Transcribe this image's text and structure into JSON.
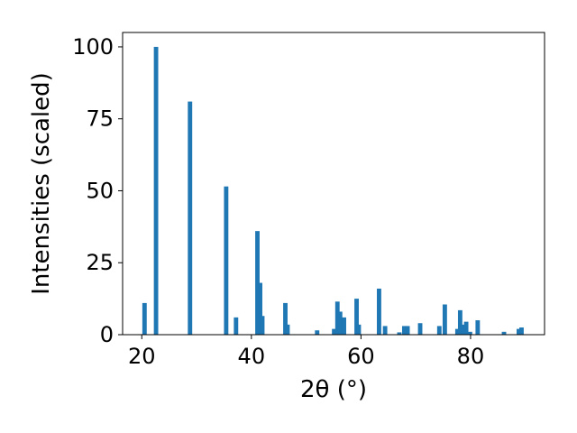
{
  "chart_data": {
    "type": "bar",
    "title": "",
    "xlabel": "2θ (°)",
    "ylabel": "Intensities (scaled)",
    "xlim": [
      16.5,
      93.5
    ],
    "ylim": [
      0,
      105
    ],
    "xticks": [
      20,
      40,
      60,
      80
    ],
    "yticks": [
      0,
      25,
      50,
      75,
      100
    ],
    "bar_width": 0.8,
    "color": "#1f77b4",
    "grid": false,
    "legend": "none",
    "x": [
      20.5,
      22.6,
      28.8,
      35.4,
      37.2,
      41.1,
      41.6,
      42.0,
      46.2,
      46.6,
      52.0,
      55.1,
      55.7,
      56.2,
      56.9,
      59.2,
      59.6,
      63.3,
      64.4,
      67.0,
      67.9,
      68.5,
      70.8,
      74.3,
      75.3,
      77.6,
      78.1,
      78.6,
      79.2,
      79.9,
      81.3,
      86.1,
      88.8,
      89.3
    ],
    "values": [
      11,
      100,
      81,
      51.5,
      6,
      36,
      18,
      6.5,
      11,
      3.5,
      1.5,
      2,
      11.5,
      8,
      6,
      12.5,
      3.5,
      16,
      3,
      0.8,
      3,
      3,
      4,
      3,
      10.5,
      2,
      8.5,
      3.5,
      4.5,
      1,
      5,
      1,
      2,
      2.5
    ]
  }
}
